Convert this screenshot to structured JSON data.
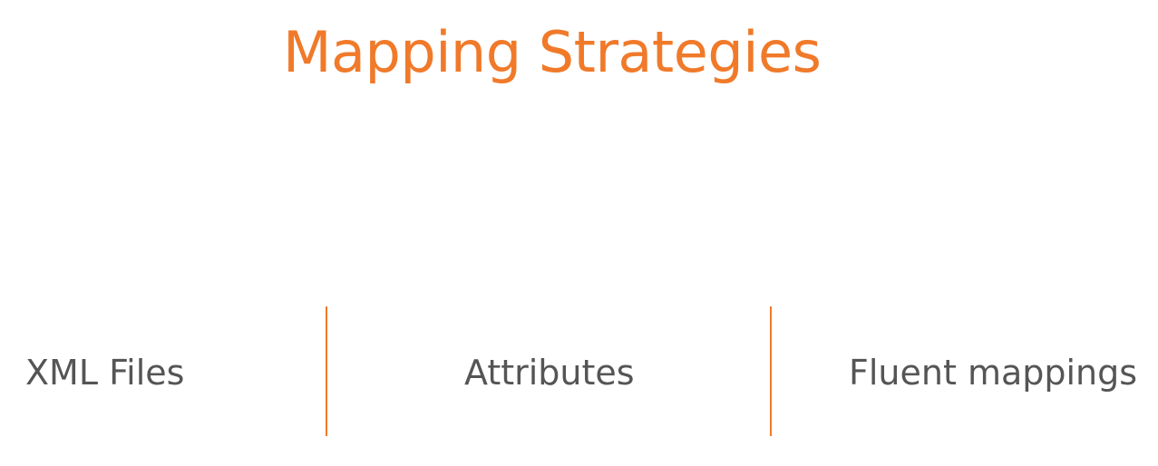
{
  "slide": {
    "title": "Mapping Strategies",
    "accent_color": "#f07a2a",
    "text_color": "#555555",
    "items": [
      {
        "label": "XML Files"
      },
      {
        "label": "Attributes"
      },
      {
        "label": "Fluent mappings"
      }
    ]
  }
}
